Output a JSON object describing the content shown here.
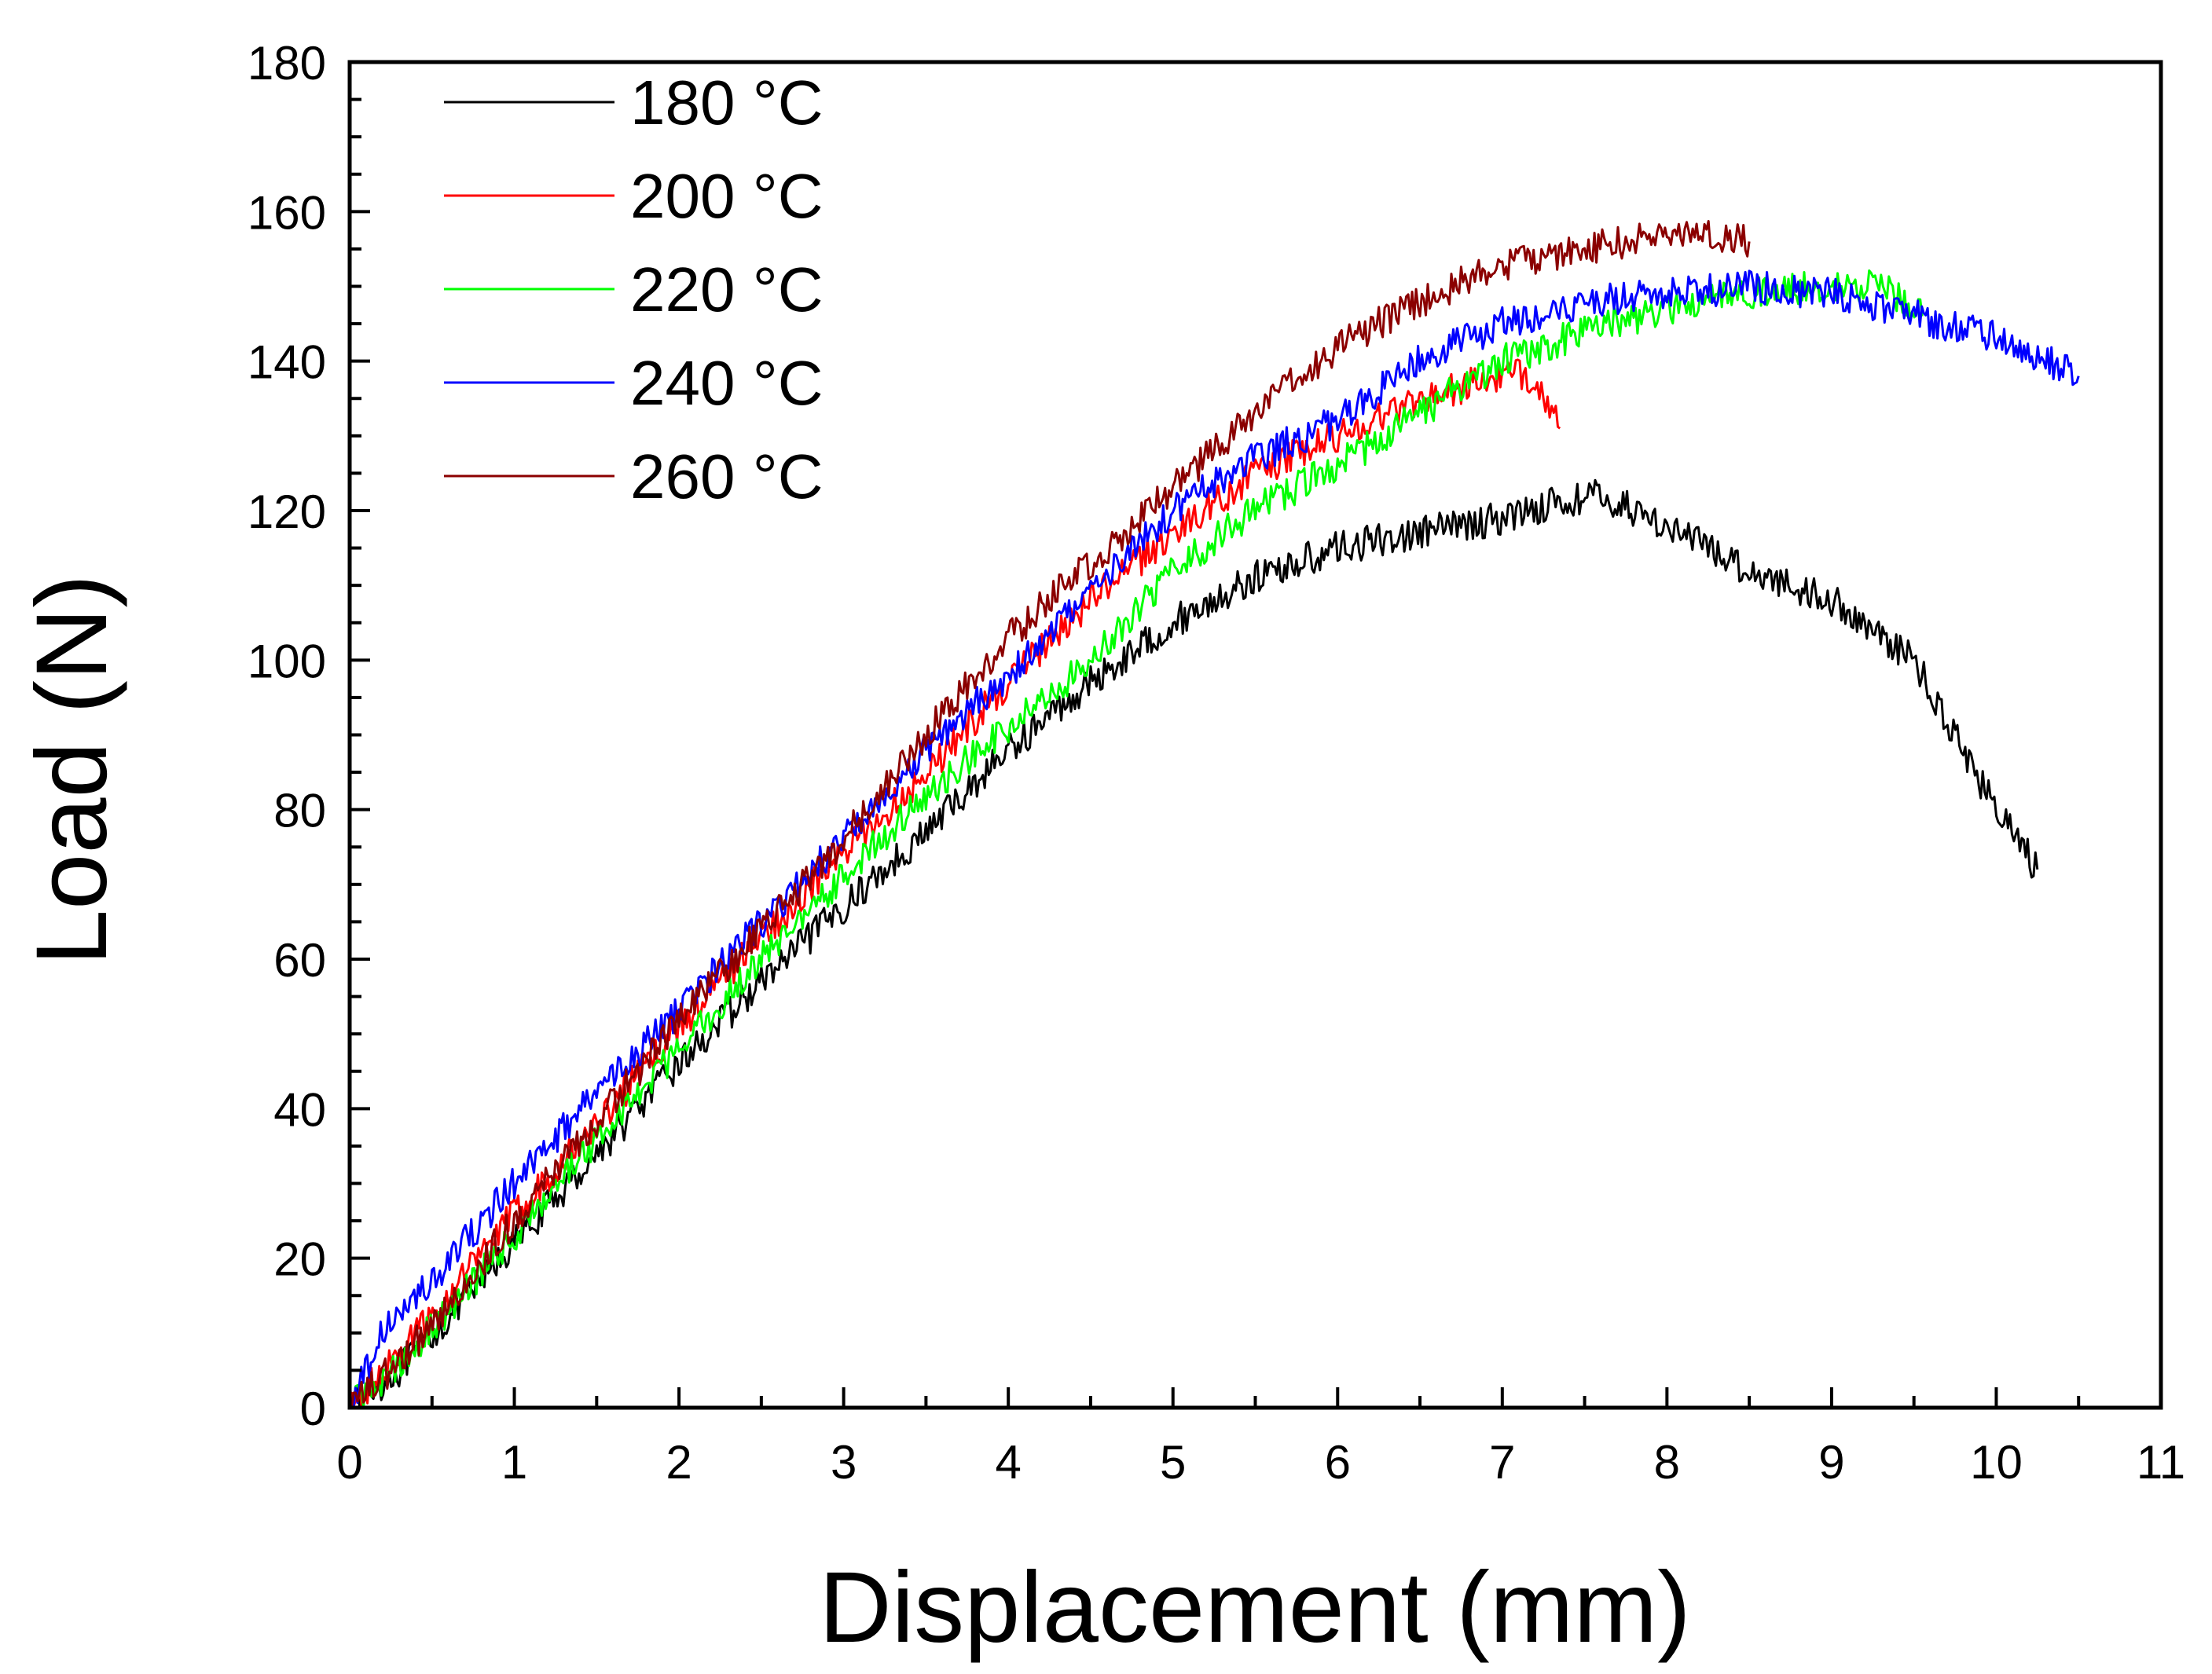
{
  "chart_data": {
    "type": "line",
    "title": "",
    "xlabel": "Displacement (mm)",
    "ylabel": "Load (N)",
    "xlim": [
      0,
      11
    ],
    "ylim": [
      0,
      180
    ],
    "xticks": [
      "0",
      "1",
      "2",
      "3",
      "4",
      "5",
      "6",
      "7",
      "8",
      "9",
      "10",
      "11"
    ],
    "yticks": [
      "0",
      "20",
      "40",
      "60",
      "80",
      "100",
      "120",
      "140",
      "160",
      "180"
    ],
    "grid": false,
    "legend_position": "top-left",
    "series": [
      {
        "name": "180 °C",
        "label_num": "180",
        "label_unit": "°C",
        "color": "#000000",
        "x": [
          0.0,
          0.3,
          0.6,
          1.0,
          1.5,
          2.0,
          2.5,
          3.0,
          3.5,
          4.0,
          4.5,
          5.0,
          5.5,
          6.0,
          6.5,
          7.0,
          7.3,
          7.6,
          8.0,
          8.5,
          9.0,
          9.5,
          9.8,
          10.0,
          10.25
        ],
        "y": [
          0,
          5,
          12,
          22,
          34,
          46,
          57,
          67,
          77,
          88,
          97,
          105,
          111,
          115,
          117,
          119,
          121,
          122,
          118,
          112,
          108,
          100,
          88,
          80,
          72
        ]
      },
      {
        "name": "200 °C",
        "label_num": "200",
        "label_unit": "°C",
        "color": "#ff0000",
        "x": [
          0.0,
          0.3,
          0.6,
          1.0,
          1.5,
          2.0,
          2.5,
          3.0,
          3.5,
          4.0,
          4.5,
          5.0,
          5.5,
          6.0,
          6.5,
          7.0,
          7.2,
          7.35
        ],
        "y": [
          0,
          7,
          15,
          26,
          38,
          51,
          63,
          74,
          85,
          97,
          108,
          117,
          125,
          130,
          135,
          138,
          138,
          131
        ]
      },
      {
        "name": "220 °C",
        "label_num": "220",
        "label_unit": "°C",
        "color": "#00ff00",
        "x": [
          0.0,
          0.3,
          0.6,
          1.0,
          1.5,
          2.0,
          2.5,
          3.0,
          3.5,
          4.0,
          4.5,
          5.0,
          5.5,
          6.0,
          6.5,
          7.0,
          7.5,
          8.0,
          8.5,
          9.0,
          9.3,
          9.55
        ],
        "y": [
          0,
          6,
          13,
          23,
          36,
          48,
          60,
          71,
          82,
          91,
          100,
          112,
          120,
          126,
          133,
          140,
          144,
          147,
          149,
          150,
          150,
          146
        ]
      },
      {
        "name": "240 °C",
        "label_num": "240",
        "label_unit": "°C",
        "color": "#0000ff",
        "x": [
          0.0,
          0.2,
          0.5,
          1.0,
          1.5,
          2.0,
          2.5,
          3.0,
          3.5,
          4.0,
          4.5,
          5.0,
          5.5,
          6.0,
          6.5,
          7.0,
          7.5,
          8.0,
          8.5,
          9.0,
          9.5,
          10.0,
          10.3,
          10.5
        ],
        "y": [
          0,
          10,
          17,
          30,
          42,
          53,
          65,
          76,
          88,
          98,
          109,
          120,
          127,
          132,
          140,
          145,
          148,
          149,
          150,
          149,
          146,
          143,
          140,
          138
        ]
      },
      {
        "name": "260 °C",
        "label_num": "260",
        "label_unit": "°C",
        "color": "#8b0000",
        "x": [
          0.0,
          0.3,
          0.6,
          1.0,
          1.5,
          2.0,
          2.5,
          3.0,
          3.5,
          4.0,
          4.5,
          5.0,
          5.5,
          6.0,
          6.5,
          7.0,
          7.5,
          8.0,
          8.3,
          8.5
        ],
        "y": [
          0,
          6,
          14,
          25,
          38,
          52,
          64,
          76,
          90,
          103,
          113,
          123,
          133,
          142,
          148,
          153,
          155,
          157,
          157,
          156
        ]
      }
    ]
  }
}
